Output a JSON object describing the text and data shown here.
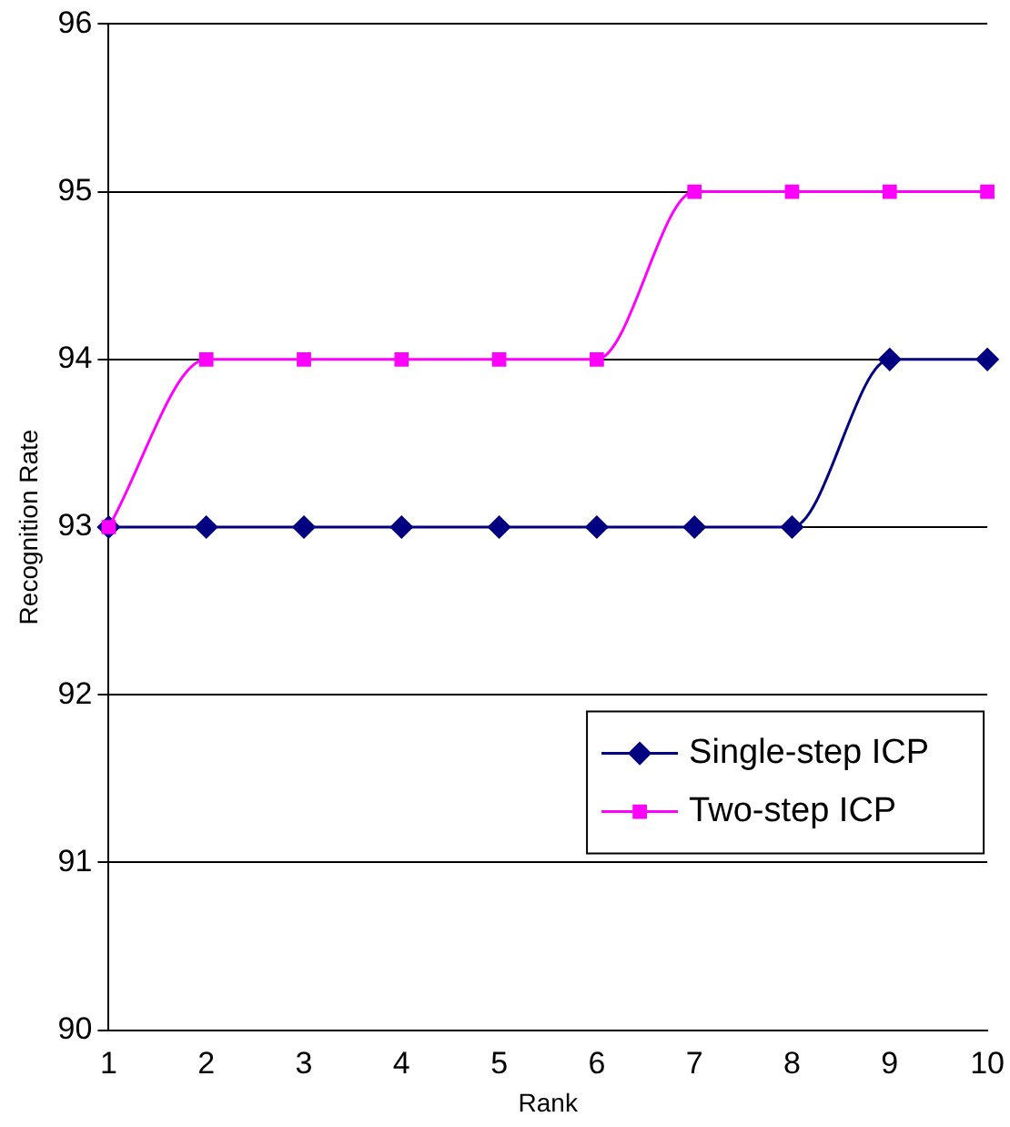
{
  "chart_data": {
    "type": "line",
    "xlabel": "Rank",
    "ylabel": "Recognition Rate",
    "categories": [
      "1",
      "2",
      "3",
      "4",
      "5",
      "6",
      "7",
      "8",
      "9",
      "10"
    ],
    "series": [
      {
        "name": "Single-step ICP",
        "color": "#000080",
        "marker": "diamond",
        "values": [
          93,
          93,
          93,
          93,
          93,
          93,
          93,
          93,
          94,
          94
        ]
      },
      {
        "name": "Two-step ICP",
        "color": "#ff00ff",
        "marker": "square",
        "values": [
          93,
          94,
          94,
          94,
          94,
          94,
          95,
          95,
          95,
          95
        ]
      }
    ],
    "ylim": [
      90,
      96
    ],
    "yticks": [
      90,
      91,
      92,
      93,
      94,
      95,
      96
    ],
    "grid": "y",
    "legend": "bottom right",
    "line_style": "solid"
  }
}
